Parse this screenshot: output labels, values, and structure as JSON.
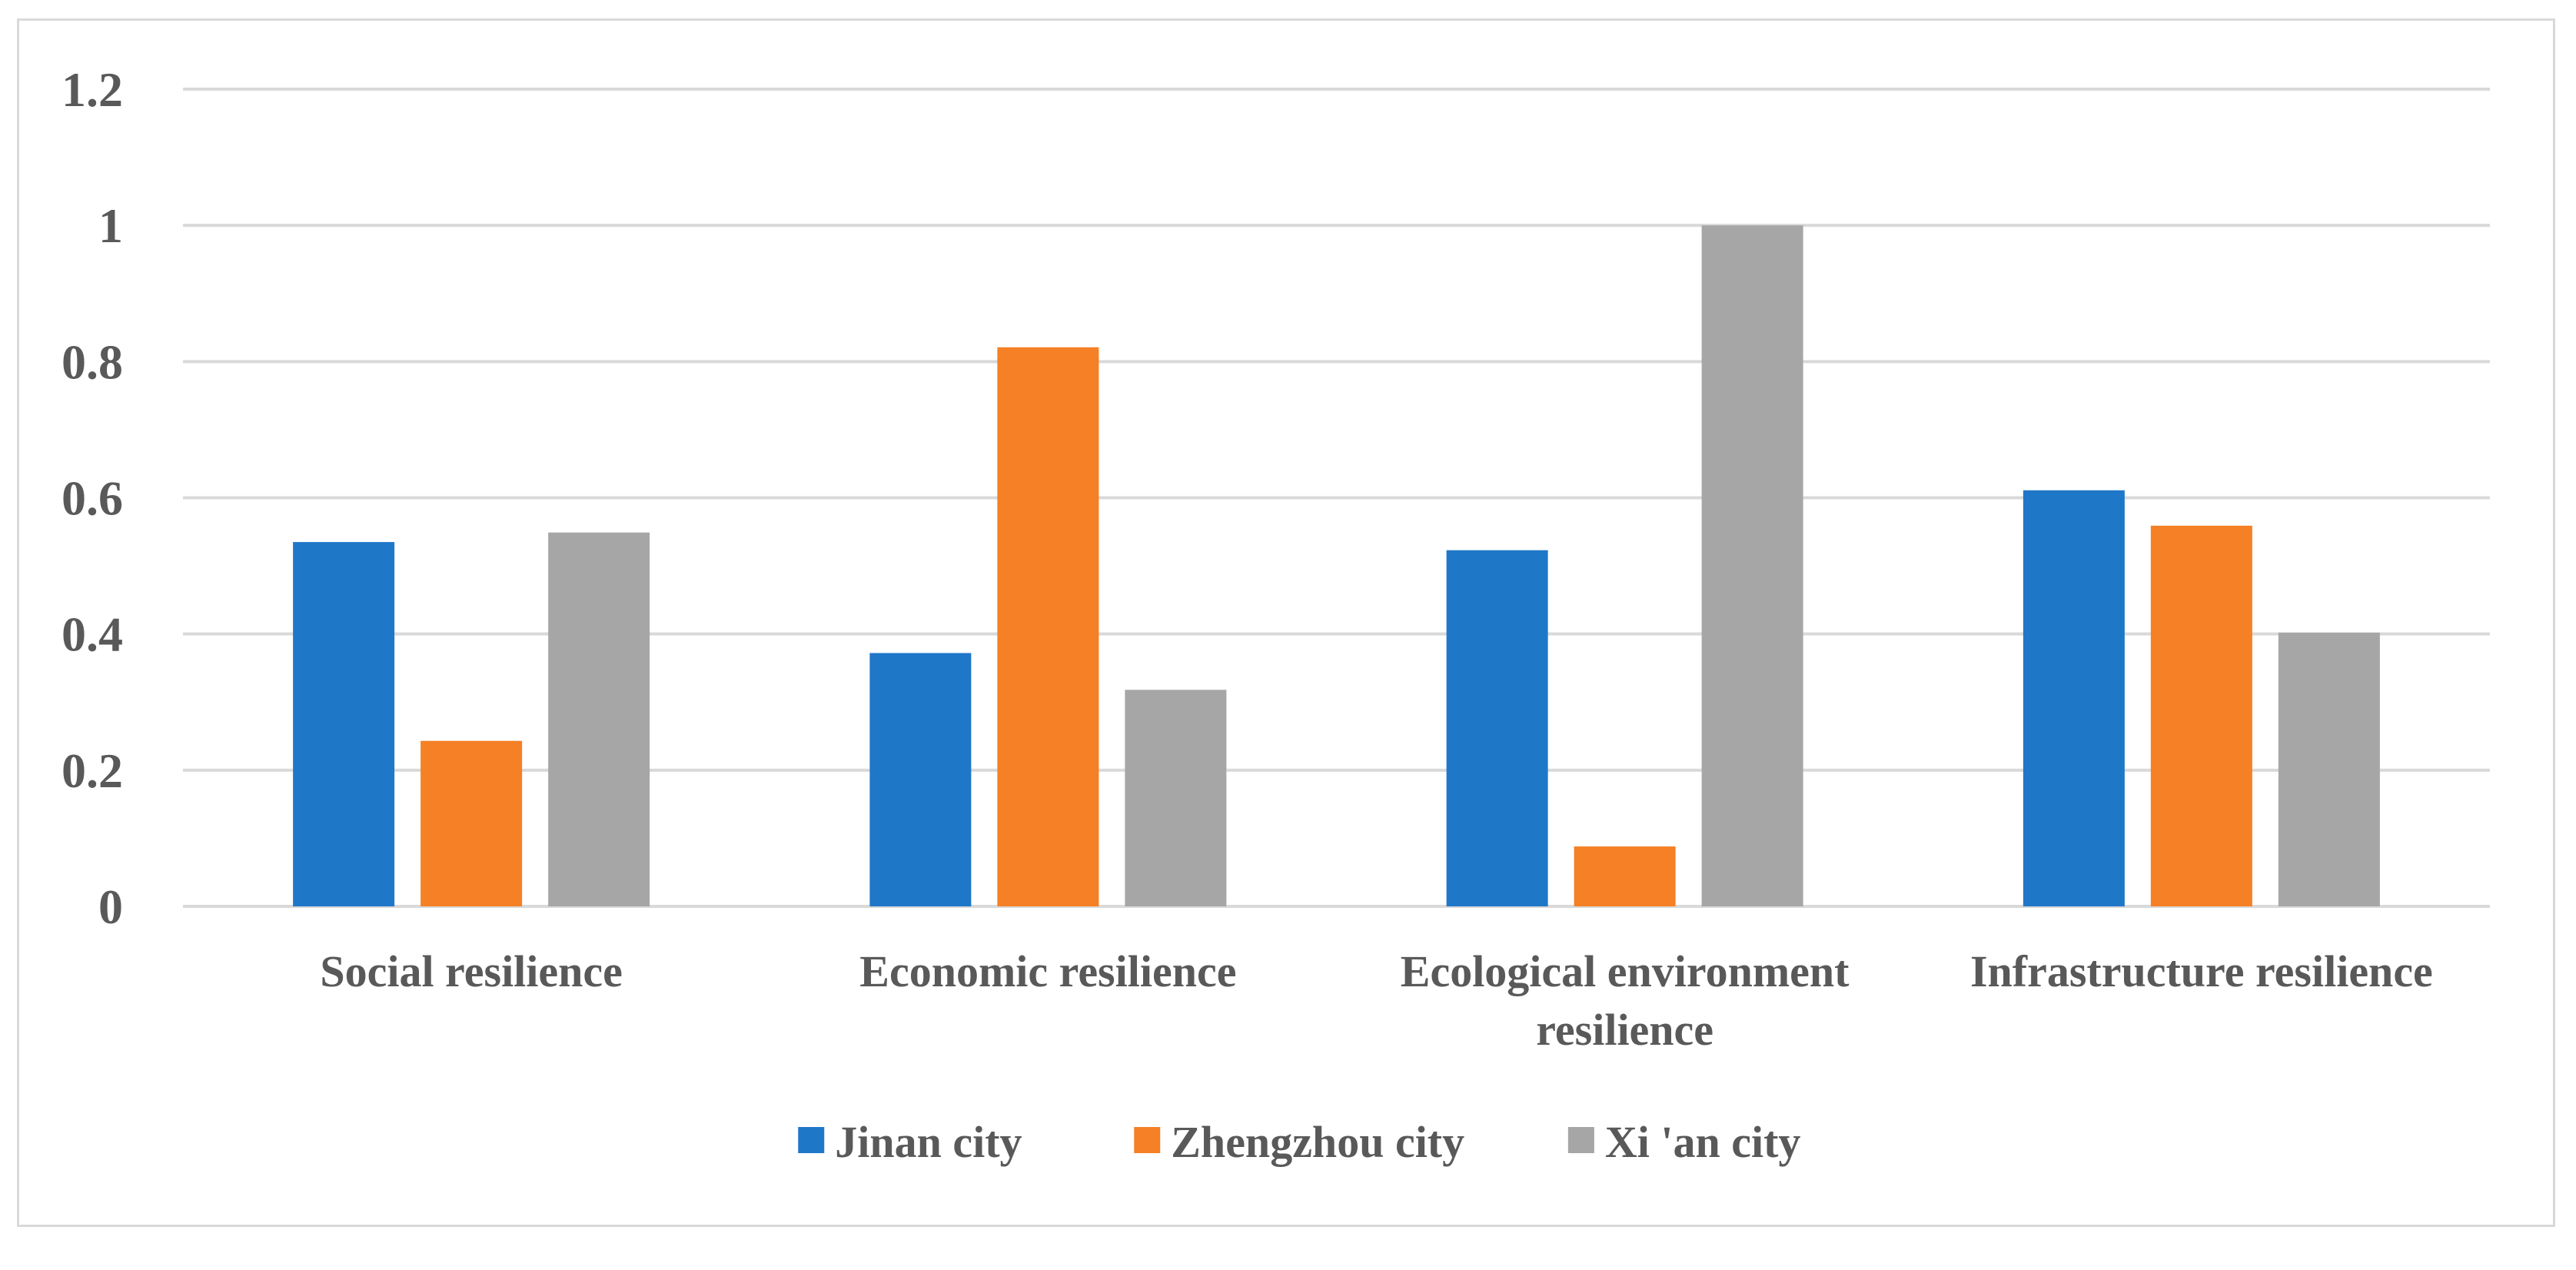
{
  "chart_data": {
    "type": "bar",
    "title": "",
    "xlabel": "",
    "ylabel": "",
    "categories": [
      [
        "Social resilience"
      ],
      [
        "Economic resilience"
      ],
      [
        "Ecological environment",
        "resilience"
      ],
      [
        "Infrastructure resilience"
      ]
    ],
    "series": [
      {
        "name": "Jinan city",
        "color": "#1f77c8",
        "values": [
          0.535,
          0.372,
          0.523,
          0.611
        ]
      },
      {
        "name": "Zhengzhou city",
        "color": "#f58025",
        "values": [
          0.243,
          0.821,
          0.088,
          0.559
        ]
      },
      {
        "name": "Xi 'an city",
        "color": "#a6a6a6",
        "values": [
          0.549,
          0.318,
          1.0,
          0.402
        ]
      }
    ],
    "ylim": [
      0,
      1.2
    ],
    "yticks": [
      0,
      0.2,
      0.4,
      0.6,
      0.8,
      1,
      1.2
    ],
    "ytick_labels": [
      "0",
      "0.2",
      "0.4",
      "0.6",
      "0.8",
      "1",
      "1.2"
    ],
    "grid": true,
    "legend_position": "bottom"
  }
}
